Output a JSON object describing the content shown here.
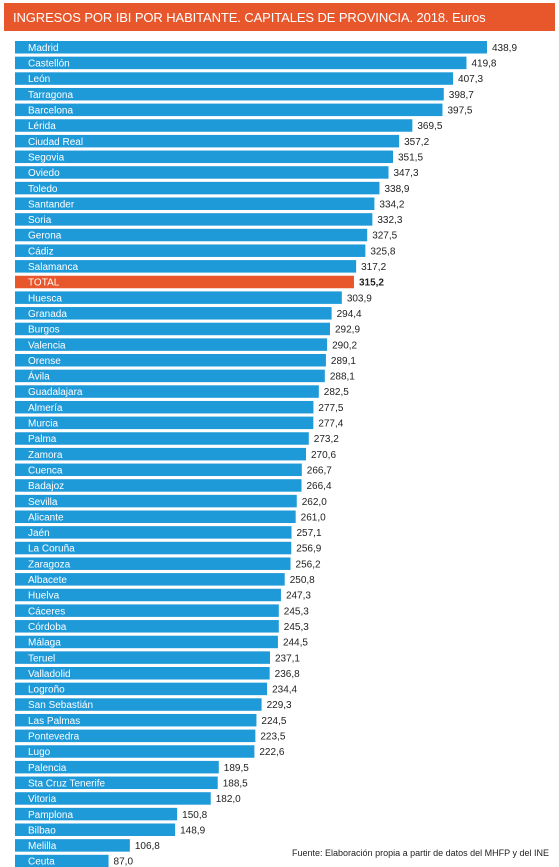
{
  "title": "INGRESOS POR IBI POR HABITANTE. CAPITALES DE PROVINCIA. 2018. Euros",
  "source": "Fuente: Elaboración propia a partir de datos del MHFP y del INE",
  "colors": {
    "bar": "#1f9ad9",
    "highlight": "#e8572b",
    "title_bg": "#e8572b"
  },
  "chart_data": {
    "type": "bar",
    "orientation": "horizontal",
    "title": "INGRESOS POR IBI POR HABITANTE. CAPITALES DE PROVINCIA. 2018. Euros",
    "highlight_category": "TOTAL",
    "categories": [
      "Madrid",
      "Castellón",
      "León",
      "Tarragona",
      "Barcelona",
      "Lérida",
      "Ciudad Real",
      "Segovia",
      "Oviedo",
      "Toledo",
      "Santander",
      "Soria",
      "Gerona",
      "Cádiz",
      "Salamanca",
      "TOTAL",
      "Huesca",
      "Granada",
      "Burgos",
      "Valencia",
      "Orense",
      "Ávila",
      "Guadalajara",
      "Almería",
      "Murcia",
      "Palma",
      "Zamora",
      "Cuenca",
      "Badajoz",
      "Sevilla",
      "Alicante",
      "Jaén",
      "La Coruña",
      "Zaragoza",
      "Albacete",
      "Huelva",
      "Cáceres",
      "Córdoba",
      "Málaga",
      "Teruel",
      "Valladolid",
      "Logroño",
      "San Sebastián",
      "Las Palmas",
      "Pontevedra",
      "Lugo",
      "Palencia",
      "Sta Cruz Tenerife",
      "Vitoria",
      "Pamplona",
      "Bilbao",
      "Melilla",
      "Ceuta"
    ],
    "values": [
      438.9,
      419.8,
      407.3,
      398.7,
      397.5,
      369.5,
      357.2,
      351.5,
      347.3,
      338.9,
      334.2,
      332.3,
      327.5,
      325.8,
      317.2,
      315.2,
      303.9,
      294.4,
      292.9,
      290.2,
      289.1,
      288.1,
      282.5,
      277.5,
      277.4,
      273.2,
      270.6,
      266.7,
      266.4,
      262.0,
      261.0,
      257.1,
      256.9,
      256.2,
      250.8,
      247.3,
      245.3,
      245.3,
      244.5,
      237.1,
      236.8,
      234.4,
      229.3,
      224.5,
      223.5,
      222.6,
      189.5,
      188.5,
      182.0,
      150.8,
      148.9,
      106.8,
      87.0
    ],
    "value_labels": [
      "438,9",
      "419,8",
      "407,3",
      "398,7",
      "397,5",
      "369,5",
      "357,2",
      "351,5",
      "347,3",
      "338,9",
      "334,2",
      "332,3",
      "327,5",
      "325,8",
      "317,2",
      "315,2",
      "303,9",
      "294,4",
      "292,9",
      "290,2",
      "289,1",
      "288,1",
      "282,5",
      "277,5",
      "277,4",
      "273,2",
      "270,6",
      "266,7",
      "266,4",
      "262,0",
      "261,0",
      "257,1",
      "256,9",
      "256,2",
      "250,8",
      "247,3",
      "245,3",
      "245,3",
      "244,5",
      "237,1",
      "236,8",
      "234,4",
      "229,3",
      "224,5",
      "223,5",
      "222,6",
      "189,5",
      "188,5",
      "182,0",
      "150,8",
      "148,9",
      "106,8",
      "87,0"
    ],
    "xlim": [
      0,
      438.9
    ],
    "grid": false,
    "legend": "none"
  }
}
